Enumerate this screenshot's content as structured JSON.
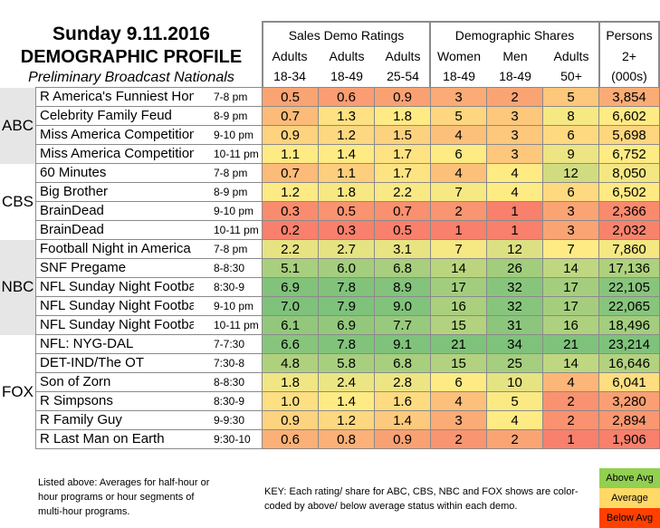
{
  "title": "Sunday 9.11.2016",
  "subtitle": "DEMOGRAPHIC PROFILE",
  "subtitle2": "Preliminary Broadcast Nationals",
  "chart_data": {
    "type": "table",
    "groups": [
      "Sales Demo Ratings",
      "Demographic Shares",
      "Persons"
    ],
    "columns": [
      [
        "Adults",
        "18-34"
      ],
      [
        "Adults",
        "18-49"
      ],
      [
        "Adults",
        "25-54"
      ],
      [
        "Women",
        "18-49"
      ],
      [
        "Men",
        "18-49"
      ],
      [
        "Adults",
        "50+"
      ],
      [
        "2+",
        "(000s)"
      ]
    ],
    "networks": [
      {
        "name": "ABC",
        "rows": 4
      },
      {
        "name": "CBS",
        "rows": 4
      },
      {
        "name": "NBC",
        "rows": 5
      },
      {
        "name": "FOX",
        "rows": 6
      }
    ],
    "rows": [
      {
        "show": "R America's Funniest Home Videos",
        "time": "7-8 pm",
        "values": [
          "0.5",
          "0.6",
          "0.9",
          "3",
          "2",
          "5",
          "3,854"
        ]
      },
      {
        "show": "Celebrity Family Feud",
        "time": "8-9 pm",
        "values": [
          "0.7",
          "1.3",
          "1.8",
          "5",
          "3",
          "8",
          "6,602"
        ]
      },
      {
        "show": "Miss America Competition",
        "time": "9-10 pm",
        "values": [
          "0.9",
          "1.2",
          "1.5",
          "4",
          "3",
          "6",
          "5,698"
        ]
      },
      {
        "show": "Miss America Competition",
        "time": "10-11 pm",
        "values": [
          "1.1",
          "1.4",
          "1.7",
          "6",
          "3",
          "9",
          "6,752"
        ]
      },
      {
        "show": "60 Minutes",
        "time": "7-8 pm",
        "values": [
          "0.7",
          "1.1",
          "1.7",
          "4",
          "4",
          "12",
          "8,050"
        ]
      },
      {
        "show": "Big Brother",
        "time": "8-9 pm",
        "values": [
          "1.2",
          "1.8",
          "2.2",
          "7",
          "4",
          "6",
          "6,502"
        ]
      },
      {
        "show": "BrainDead",
        "time": "9-10 pm",
        "values": [
          "0.3",
          "0.5",
          "0.7",
          "2",
          "1",
          "3",
          "2,366"
        ]
      },
      {
        "show": "BrainDead",
        "time": "10-11 pm",
        "values": [
          "0.2",
          "0.3",
          "0.5",
          "1",
          "1",
          "3",
          "2,032"
        ]
      },
      {
        "show": "Football Night in America",
        "time": "7-8 pm",
        "values": [
          "2.2",
          "2.7",
          "3.1",
          "7",
          "12",
          "7",
          "7,860"
        ]
      },
      {
        "show": "SNF Pregame",
        "time": "8-8:30",
        "values": [
          "5.1",
          "6.0",
          "6.8",
          "14",
          "26",
          "14",
          "17,136"
        ]
      },
      {
        "show": "NFL Sunday Night Football",
        "time": "8:30-9",
        "values": [
          "6.9",
          "7.8",
          "8.9",
          "17",
          "32",
          "17",
          "22,105"
        ]
      },
      {
        "show": "NFL Sunday Night Football",
        "time": "9-10 pm",
        "values": [
          "7.0",
          "7.9",
          "9.0",
          "16",
          "32",
          "17",
          "22,065"
        ]
      },
      {
        "show": "NFL Sunday Night Football",
        "time": "10-11 pm",
        "values": [
          "6.1",
          "6.9",
          "7.7",
          "15",
          "31",
          "16",
          "18,496"
        ]
      },
      {
        "show": "NFL: NYG-DAL",
        "time": "7-7:30",
        "values": [
          "6.6",
          "7.8",
          "9.1",
          "21",
          "34",
          "21",
          "23,214"
        ]
      },
      {
        "show": "DET-IND/The OT",
        "time": "7:30-8",
        "values": [
          "4.8",
          "5.8",
          "6.8",
          "15",
          "25",
          "14",
          "16,646"
        ]
      },
      {
        "show": "Son of Zorn",
        "time": "8-8:30",
        "values": [
          "1.8",
          "2.4",
          "2.8",
          "6",
          "10",
          "4",
          "6,041"
        ]
      },
      {
        "show": "R Simpsons",
        "time": "8:30-9",
        "values": [
          "1.0",
          "1.4",
          "1.6",
          "4",
          "5",
          "2",
          "3,280"
        ]
      },
      {
        "show": "R Family Guy",
        "time": "9-9:30",
        "values": [
          "0.9",
          "1.2",
          "1.4",
          "3",
          "4",
          "2",
          "2,894"
        ]
      },
      {
        "show": "R Last Man on Earth",
        "time": "9:30-10",
        "values": [
          "0.6",
          "0.8",
          "0.9",
          "2",
          "2",
          "1",
          "1,906"
        ]
      }
    ]
  },
  "footnote": "Listed above: Averages for half-hour or hour programs or hour segments of multi-hour programs.",
  "key_text": "KEY: Each rating/ share for ABC, CBS, NBC and FOX shows are color-coded by above/ below average status within each demo.",
  "legend": [
    {
      "label": "Above Avg",
      "color": "#92D050"
    },
    {
      "label": "Average",
      "color": "#FFD966"
    },
    {
      "label": "Below Avg",
      "color": "#FF4000"
    }
  ],
  "scale_colors": {
    "low": "#F8806C",
    "mid": "#FFEB84",
    "high": "#7FC27B"
  }
}
